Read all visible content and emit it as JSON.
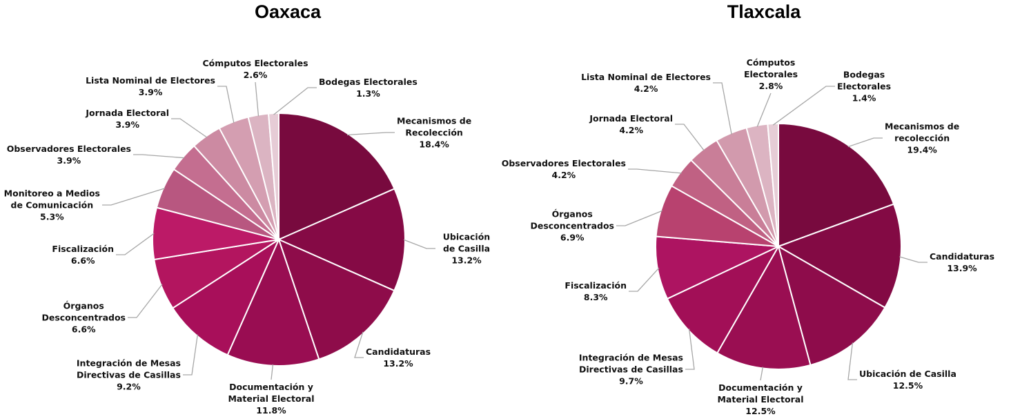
{
  "chart_data": [
    {
      "type": "pie",
      "title": "Oaxaca",
      "categories": [
        "Mecanismos de\nRecolección",
        "Ubicación de Casilla",
        "Candidaturas",
        "Documentación y\nMaterial Electoral",
        "Integración de Mesas\nDirectivas de Casillas",
        "Órganos\nDesconcentrados",
        "Fiscalización",
        "Monitoreo a Medios\nde Comunicación",
        "Observadores Electorales",
        "Jornada Electoral",
        "Lista Nominal de Electores",
        "Cómputos Electorales",
        "Bodegas Electorales"
      ],
      "values": [
        18.4,
        13.2,
        13.2,
        11.8,
        9.2,
        6.6,
        6.6,
        5.3,
        3.9,
        3.9,
        3.9,
        2.6,
        1.3
      ],
      "value_labels": [
        "18.4%",
        "13.2%",
        "13.2%",
        "11.8%",
        "9.2%",
        "6.6%",
        "6.6%",
        "5.3%",
        "3.9%",
        "3.9%",
        "3.9%",
        "2.6%",
        "1.3%"
      ],
      "colors": [
        "#780a3e",
        "#850a45",
        "#8e0c4a",
        "#990d52",
        "#a80f5a",
        "#b3155f",
        "#bc1a67",
        "#b85780",
        "#c46e90",
        "#cc8aa2",
        "#d49eb1",
        "#dbb4c2",
        "#e6ccd6"
      ]
    },
    {
      "type": "pie",
      "title": "Tlaxcala",
      "categories": [
        "Mecanismos de\nrecolección",
        "Candidaturas",
        "Ubicación de Casilla",
        "Documentación y\nMaterial Electoral",
        "Integración de Mesas\nDirectivas de Casillas",
        "Fiscalización",
        "Órganos\nDesconcentrados",
        "Observadores Electorales",
        "Jornada Electoral",
        "Lista Nominal de Electores",
        "Cómputos\nElectorales",
        "Bodegas\nElectorales"
      ],
      "values": [
        19.4,
        13.9,
        12.5,
        12.5,
        9.7,
        8.3,
        6.9,
        4.2,
        4.2,
        4.2,
        2.8,
        1.4
      ],
      "value_labels": [
        "19.4%",
        "13.9%",
        "12.5%",
        "12.5%",
        "9.7%",
        "8.3%",
        "6.9%",
        "4.2%",
        "4.2%",
        "4.2%",
        "2.8%",
        "1.4%"
      ],
      "colors": [
        "#780a3e",
        "#830a44",
        "#8e0c4b",
        "#9a0e52",
        "#a20f57",
        "#ad1461",
        "#b8426f",
        "#c06183",
        "#c97e98",
        "#d29aad",
        "#dcb4c2",
        "#e6cdd6"
      ]
    }
  ]
}
